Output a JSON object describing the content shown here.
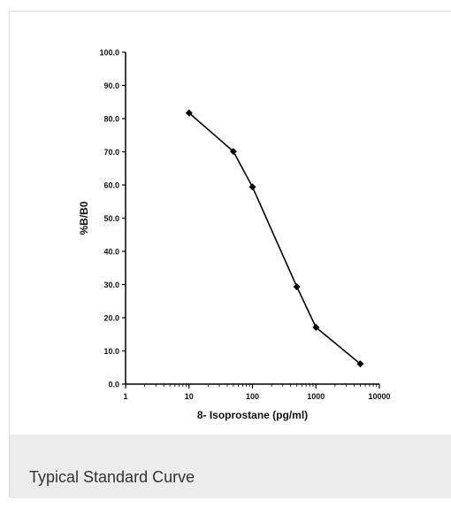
{
  "caption": "Typical Standard Curve",
  "chart_data": {
    "type": "line",
    "title": "",
    "xlabel": "8- Isoprostane (pg/ml)",
    "ylabel": "%B/B0",
    "xscale": "log",
    "xlim": [
      1,
      10000
    ],
    "ylim": [
      0,
      100
    ],
    "xticks": [
      1,
      10,
      100,
      1000,
      10000
    ],
    "xtick_labels": [
      "1",
      "10",
      "100",
      "1000",
      "10000"
    ],
    "yticks": [
      0,
      10,
      20,
      30,
      40,
      50,
      60,
      70,
      80,
      90,
      100
    ],
    "ytick_labels": [
      "0.0",
      "10.0",
      "20.0",
      "30.0",
      "40.0",
      "50.0",
      "60.0",
      "70.0",
      "80.0",
      "90.0",
      "100.0"
    ],
    "grid": false,
    "series": [
      {
        "marker": "diamond",
        "color": "#000000",
        "x": [
          10,
          50,
          100,
          500,
          1000,
          5000
        ],
        "y": [
          81.7,
          70.1,
          59.4,
          29.3,
          17.1,
          6.1
        ]
      }
    ]
  }
}
